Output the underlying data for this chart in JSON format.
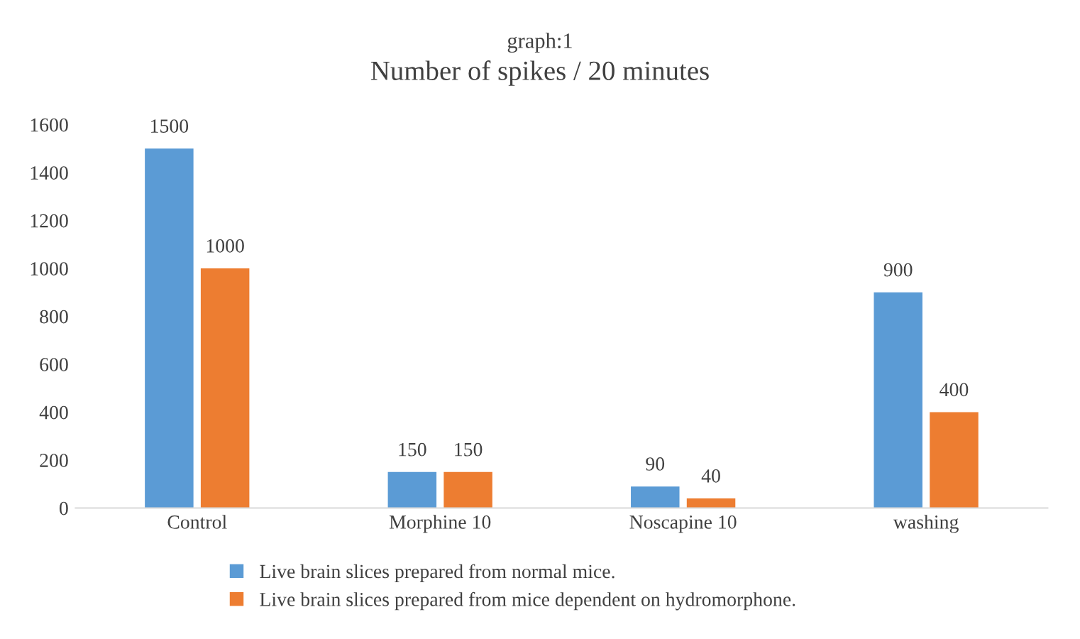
{
  "chart_data": {
    "type": "bar",
    "title": "graph:1",
    "subtitle": "Number of spikes / 20 minutes",
    "categories": [
      "Control",
      "Morphine 10",
      "Noscapine 10",
      "washing"
    ],
    "series": [
      {
        "name": "Live brain slices prepared from normal mice.",
        "color": "#5b9bd5",
        "values": [
          1500,
          150,
          90,
          900
        ]
      },
      {
        "name": "Live brain slices prepared from mice dependent on hydromorphone.",
        "color": "#ed7d31",
        "values": [
          1000,
          150,
          40,
          400
        ]
      }
    ],
    "ylim": [
      0,
      1600
    ],
    "yticks": [
      0,
      200,
      400,
      600,
      800,
      1000,
      1200,
      1400,
      1600
    ],
    "data_labels": true,
    "grid": false,
    "legend": "bottom"
  }
}
